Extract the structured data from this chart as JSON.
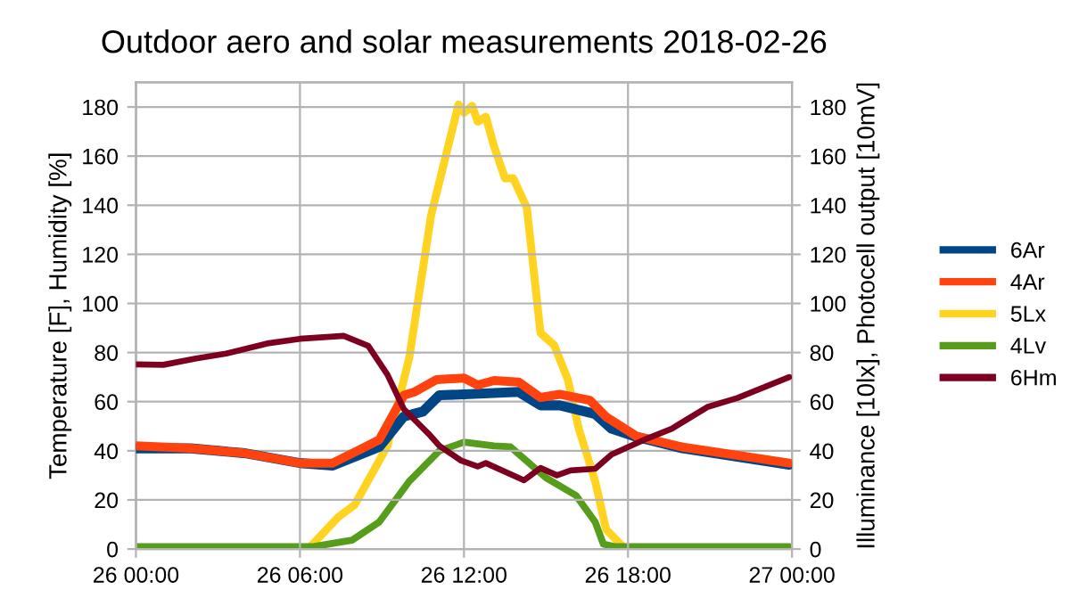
{
  "chart_data": {
    "type": "line",
    "title": "Outdoor aero and solar measurements 2018-02-26",
    "ylabel": "Temperature [F], Humidity [%]",
    "y2label": "Illuminance [10lx], Photocell output [10mV]",
    "xlim": [
      "2018-02-26T00:00",
      "2018-02-27T00:00"
    ],
    "xticks": [
      {
        "value": "2018-02-26T00:00",
        "label": "26 00:00"
      },
      {
        "value": "2018-02-26T06:00",
        "label": "26 06:00"
      },
      {
        "value": "2018-02-26T12:00",
        "label": "26 12:00"
      },
      {
        "value": "2018-02-26T18:00",
        "label": "26 18:00"
      },
      {
        "value": "2018-02-27T00:00",
        "label": "27 00:00"
      }
    ],
    "ylim": [
      0,
      190
    ],
    "yticks": [
      0,
      20,
      40,
      60,
      80,
      100,
      120,
      140,
      160,
      180
    ],
    "y2lim": [
      0,
      190
    ],
    "y2ticks": [
      0,
      20,
      40,
      60,
      80,
      100,
      120,
      140,
      160,
      180
    ],
    "grid": true,
    "legend": "right",
    "marker": "none",
    "line_style": "solid",
    "series": [
      {
        "name": "6Ar",
        "color": "#004586",
        "x": [
          "2018-02-26T00:00",
          "2018-02-26T02:00",
          "2018-02-26T04:00",
          "2018-02-26T05:00",
          "2018-02-26T06:00",
          "2018-02-26T07:12",
          "2018-02-26T08:54",
          "2018-02-26T09:48",
          "2018-02-26T10:30",
          "2018-02-26T11:06",
          "2018-02-26T12:00",
          "2018-02-26T14:00",
          "2018-02-26T14:48",
          "2018-02-26T15:30",
          "2018-02-26T16:48",
          "2018-02-26T17:24",
          "2018-02-26T18:18",
          "2018-02-26T20:00",
          "2018-02-26T23:54"
        ],
        "values": [
          41,
          41,
          39,
          37,
          35,
          34,
          41.6,
          54,
          56,
          62.6,
          63,
          64,
          58.5,
          58.5,
          55,
          49,
          45.7,
          41,
          34.3
        ]
      },
      {
        "name": "4Ar",
        "color": "#ff420e",
        "x": [
          "2018-02-26T00:00",
          "2018-02-26T02:00",
          "2018-02-26T04:00",
          "2018-02-26T05:00",
          "2018-02-26T06:00",
          "2018-02-26T07:12",
          "2018-02-26T08:06",
          "2018-02-26T08:54",
          "2018-02-26T09:48",
          "2018-02-26T10:12",
          "2018-02-26T11:00",
          "2018-02-26T12:00",
          "2018-02-26T12:30",
          "2018-02-26T13:06",
          "2018-02-26T14:00",
          "2018-02-26T14:48",
          "2018-02-26T15:30",
          "2018-02-26T16:36",
          "2018-02-26T17:12",
          "2018-02-26T18:18",
          "2018-02-26T20:00",
          "2018-02-26T23:54"
        ],
        "values": [
          42,
          41,
          39,
          37,
          35,
          35,
          40,
          44.5,
          62.6,
          64,
          69,
          69.6,
          66.8,
          68.6,
          68,
          61.7,
          63,
          60.6,
          53.8,
          46,
          41.5,
          35
        ]
      },
      {
        "name": "5Lx",
        "color": "#ffd320",
        "axis": "y2",
        "x": [
          "2018-02-26T00:00",
          "2018-02-26T06:18",
          "2018-02-26T07:24",
          "2018-02-26T08:00",
          "2018-02-26T09:12",
          "2018-02-26T10:00",
          "2018-02-26T10:48",
          "2018-02-26T11:48",
          "2018-02-26T12:00",
          "2018-02-26T12:18",
          "2018-02-26T12:30",
          "2018-02-26T12:48",
          "2018-02-26T13:06",
          "2018-02-26T13:30",
          "2018-02-26T13:48",
          "2018-02-26T14:18",
          "2018-02-26T14:48",
          "2018-02-26T15:18",
          "2018-02-26T15:48",
          "2018-02-26T16:12",
          "2018-02-26T16:48",
          "2018-02-26T17:12",
          "2018-02-26T17:54",
          "2018-02-26T23:54"
        ],
        "values": [
          0,
          0,
          13,
          18,
          42,
          78,
          136,
          181,
          177.6,
          180.5,
          174,
          176,
          164,
          151,
          151,
          139,
          88,
          83,
          69,
          49,
          27.6,
          8,
          0,
          0
        ]
      },
      {
        "name": "4Lv",
        "color": "#579d1c",
        "axis": "y2",
        "x": [
          "2018-02-26T00:00",
          "2018-02-26T06:30",
          "2018-02-26T07:54",
          "2018-02-26T08:54",
          "2018-02-26T10:00",
          "2018-02-26T11:06",
          "2018-02-26T12:00",
          "2018-02-26T13:06",
          "2018-02-26T13:42",
          "2018-02-26T15:00",
          "2018-02-26T16:06",
          "2018-02-26T16:48",
          "2018-02-26T17:06",
          "2018-02-26T17:30",
          "2018-02-26T23:54"
        ],
        "values": [
          1,
          1,
          3.6,
          11,
          27.6,
          40,
          43.5,
          42,
          41.6,
          29,
          21.8,
          11,
          2,
          1,
          1
        ]
      },
      {
        "name": "6Hm",
        "color": "#7e0021",
        "x": [
          "2018-02-26T00:00",
          "2018-02-26T01:00",
          "2018-02-26T02:12",
          "2018-02-26T03:18",
          "2018-02-26T04:48",
          "2018-02-26T06:00",
          "2018-02-26T07:36",
          "2018-02-26T08:30",
          "2018-02-26T09:12",
          "2018-02-26T09:48",
          "2018-02-26T10:42",
          "2018-02-26T11:06",
          "2018-02-26T11:54",
          "2018-02-26T12:30",
          "2018-02-26T12:48",
          "2018-02-26T14:12",
          "2018-02-26T14:48",
          "2018-02-26T15:24",
          "2018-02-26T15:54",
          "2018-02-26T16:48",
          "2018-02-26T17:24",
          "2018-02-26T18:42",
          "2018-02-26T19:36",
          "2018-02-26T20:54",
          "2018-02-26T22:00",
          "2018-02-26T23:54"
        ],
        "values": [
          75.2,
          75,
          77.6,
          79.6,
          83.7,
          85.6,
          86.8,
          82.7,
          71,
          57,
          47,
          42,
          36,
          33.6,
          35,
          28,
          33,
          30,
          32,
          32.7,
          38.5,
          45,
          49,
          57.8,
          61.5,
          70
        ]
      }
    ]
  }
}
